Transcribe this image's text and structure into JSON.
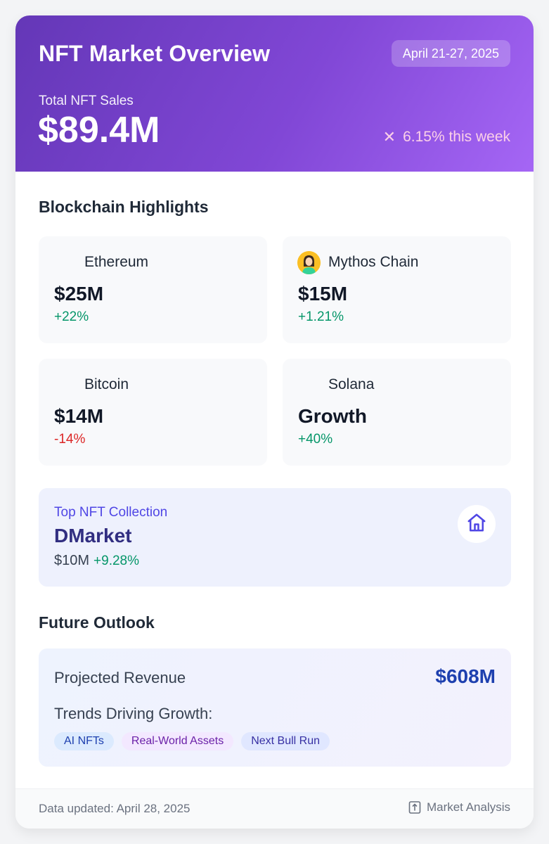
{
  "header": {
    "title": "NFT Market Overview",
    "date_range": "April 21-27, 2025",
    "sales_label": "Total NFT Sales",
    "sales_value": "$89.4M",
    "change_icon": "x-icon",
    "change_text": "6.15% this week"
  },
  "highlights": {
    "title": "Blockchain Highlights",
    "chains": [
      {
        "name": "Ethereum",
        "value": "$25M",
        "change": "+22%",
        "trend": "positive"
      },
      {
        "name": "Mythos Chain",
        "value": "$15M",
        "change": "+1.21%",
        "trend": "positive",
        "icon": "avatar-icon"
      },
      {
        "name": "Bitcoin",
        "value": "$14M",
        "change": "-14%",
        "trend": "negative"
      },
      {
        "name": "Solana",
        "value": "Growth",
        "change": "+40%",
        "trend": "positive"
      }
    ]
  },
  "top_collection": {
    "label": "Top NFT Collection",
    "name": "DMarket",
    "value": "$10M",
    "change": "+9.28%",
    "icon": "home-icon"
  },
  "outlook": {
    "title": "Future Outlook",
    "projected_label": "Projected Revenue",
    "projected_value": "$608M",
    "trends_label": "Trends Driving Growth:",
    "tags": [
      "AI NFTs",
      "Real-World Assets",
      "Next Bull Run"
    ]
  },
  "footer": {
    "updated": "Data updated: April 28, 2025",
    "analysis_label": "Market Analysis",
    "analysis_icon": "document-icon"
  },
  "colors": {
    "header_gradient_start": "#6437b7",
    "header_gradient_end": "#a566f5",
    "positive": "#059669",
    "negative": "#dc2626",
    "accent_indigo": "#4f46e5",
    "projected_blue": "#1e40af"
  }
}
